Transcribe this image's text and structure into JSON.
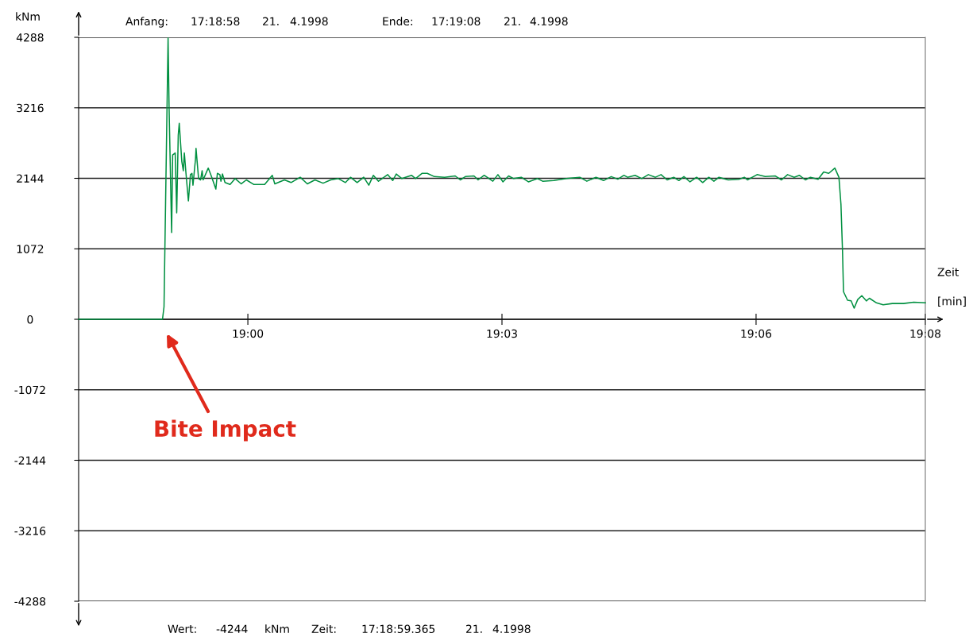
{
  "chart_data": {
    "type": "line",
    "ylabel": "kNm",
    "xlabel": "Zeit\n[min]",
    "annotations": [
      "Anfang:",
      "17:18:58",
      "21.",
      "4.1998",
      "Ende:",
      "17:19:08",
      "21.",
      "4.1998",
      "Wert:",
      "-4244",
      "kNm",
      "Zeit:",
      "17:18:59.365",
      "21.",
      "4.1998",
      "Bite Impact"
    ],
    "xlim": [
      18.9667,
      19.1333
    ],
    "xticks": [
      {
        "value": 19.0,
        "label": "19:00"
      },
      {
        "value": 19.05,
        "label": "19:03"
      },
      {
        "value": 19.1,
        "label": "19:06"
      },
      {
        "value": 19.1333,
        "label": "19:08"
      }
    ],
    "ylim": [
      -4288,
      4288
    ],
    "yticks": [
      -4288,
      -3216,
      -2144,
      -1072,
      0,
      1072,
      2144,
      3216,
      4288
    ],
    "grid": "y",
    "series": [
      {
        "color": "#009040",
        "x": [
          18.9667,
          18.975,
          18.9832,
          18.9835,
          18.9843,
          18.9845,
          18.985,
          18.9852,
          18.9857,
          18.986,
          18.9863,
          18.9865,
          18.987,
          18.9873,
          18.9875,
          18.9878,
          18.9883,
          18.9887,
          18.989,
          18.9892,
          18.9897,
          18.9898,
          18.9903,
          18.9907,
          18.991,
          18.9912,
          18.9922,
          18.9928,
          18.9937,
          18.994,
          18.9945,
          18.9947,
          18.995,
          18.9955,
          18.9965,
          18.9975,
          18.9987,
          18.9997,
          19.0012,
          19.0033,
          19.0048,
          19.0053,
          19.0072,
          19.0085,
          19.0103,
          19.0117,
          19.0132,
          19.0148,
          19.0163,
          19.0178,
          19.0192,
          19.0202,
          19.0215,
          19.0228,
          19.0238,
          19.0247,
          19.0257,
          19.0275,
          19.0285,
          19.0292,
          19.0303,
          19.0322,
          19.033,
          19.0343,
          19.0353,
          19.0367,
          19.0387,
          19.0408,
          19.0418,
          19.0428,
          19.0445,
          19.0453,
          19.0465,
          19.0482,
          19.0492,
          19.0502,
          19.0513,
          19.0523,
          19.0538,
          19.0552,
          19.057,
          19.058,
          19.0602,
          19.0627,
          19.0653,
          19.0667,
          19.0685,
          19.07,
          19.0715,
          19.0728,
          19.074,
          19.0747,
          19.0762,
          19.0775,
          19.0788,
          19.0802,
          19.0813,
          19.0825,
          19.0838,
          19.0848,
          19.0858,
          19.087,
          19.0883,
          19.0895,
          19.0907,
          19.0917,
          19.0927,
          19.0945,
          19.0967,
          19.0977,
          19.0983,
          19.1002,
          19.1018,
          19.1038,
          19.105,
          19.1062,
          19.1075,
          19.1085,
          19.1097,
          19.1107,
          19.1122,
          19.1133,
          19.1143,
          19.1155,
          19.1163,
          19.1167,
          19.117,
          19.1172,
          19.118,
          19.1187,
          19.1193,
          19.12,
          19.1208,
          19.1217,
          19.1223,
          19.1237,
          19.125,
          19.1268,
          19.129,
          19.131,
          19.1333
        ],
        "values": [
          0,
          0,
          0,
          190,
          4280,
          3210,
          1320,
          2500,
          2530,
          1620,
          2800,
          2980,
          2400,
          2260,
          2530,
          2240,
          1800,
          2200,
          2220,
          2040,
          2440,
          2600,
          2140,
          2120,
          2260,
          2120,
          2300,
          2180,
          1980,
          2220,
          2200,
          2100,
          2210,
          2080,
          2050,
          2140,
          2060,
          2120,
          2050,
          2050,
          2190,
          2060,
          2120,
          2080,
          2160,
          2060,
          2120,
          2070,
          2120,
          2140,
          2080,
          2160,
          2080,
          2160,
          2040,
          2190,
          2100,
          2200,
          2110,
          2210,
          2140,
          2190,
          2140,
          2220,
          2220,
          2170,
          2160,
          2180,
          2120,
          2170,
          2180,
          2120,
          2190,
          2100,
          2200,
          2090,
          2180,
          2140,
          2160,
          2090,
          2140,
          2100,
          2110,
          2140,
          2160,
          2100,
          2160,
          2110,
          2170,
          2130,
          2190,
          2160,
          2190,
          2140,
          2200,
          2160,
          2200,
          2120,
          2160,
          2110,
          2170,
          2090,
          2160,
          2080,
          2160,
          2100,
          2160,
          2120,
          2130,
          2160,
          2120,
          2200,
          2170,
          2180,
          2120,
          2200,
          2160,
          2190,
          2120,
          2160,
          2130,
          2240,
          2220,
          2300,
          2160,
          1750,
          1060,
          420,
          290,
          280,
          170,
          300,
          360,
          280,
          320,
          250,
          220,
          240,
          240,
          260,
          250
        ]
      }
    ]
  }
}
